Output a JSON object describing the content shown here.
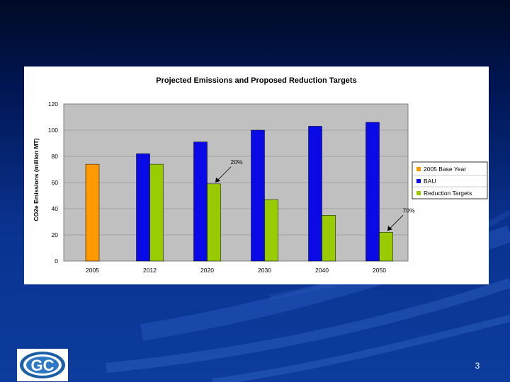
{
  "slide": {
    "page_number": "3"
  },
  "logo": {
    "letters": "GC"
  },
  "colors": {
    "base_year": "#ff9900",
    "bau": "#0a0ae6",
    "reduction": "#99cc00",
    "plot_bg": "#c0c0c0"
  },
  "chart_data": {
    "type": "bar",
    "title": "Projected Emissions and Proposed Reduction Targets",
    "xlabel": "",
    "ylabel": "CO2e Emissions (million MT)",
    "ylim": [
      0,
      120
    ],
    "yticks": [
      "0",
      "20",
      "40",
      "60",
      "80",
      "100",
      "120"
    ],
    "categories": [
      "2005",
      "2012",
      "2020",
      "2030",
      "2040",
      "2050"
    ],
    "series": [
      {
        "name": "2005 Base Year",
        "values": [
          74,
          null,
          null,
          null,
          null,
          null
        ]
      },
      {
        "name": "BAU",
        "values": [
          null,
          82,
          91,
          100,
          103,
          106
        ]
      },
      {
        "name": "Reduction Targets",
        "values": [
          null,
          74,
          59,
          47,
          35,
          22
        ]
      }
    ],
    "annotations": [
      {
        "text": "20%",
        "category": "2020",
        "series": "Reduction Targets"
      },
      {
        "text": "70%",
        "category": "2050",
        "series": "Reduction Targets"
      }
    ],
    "legend_position": "right"
  }
}
